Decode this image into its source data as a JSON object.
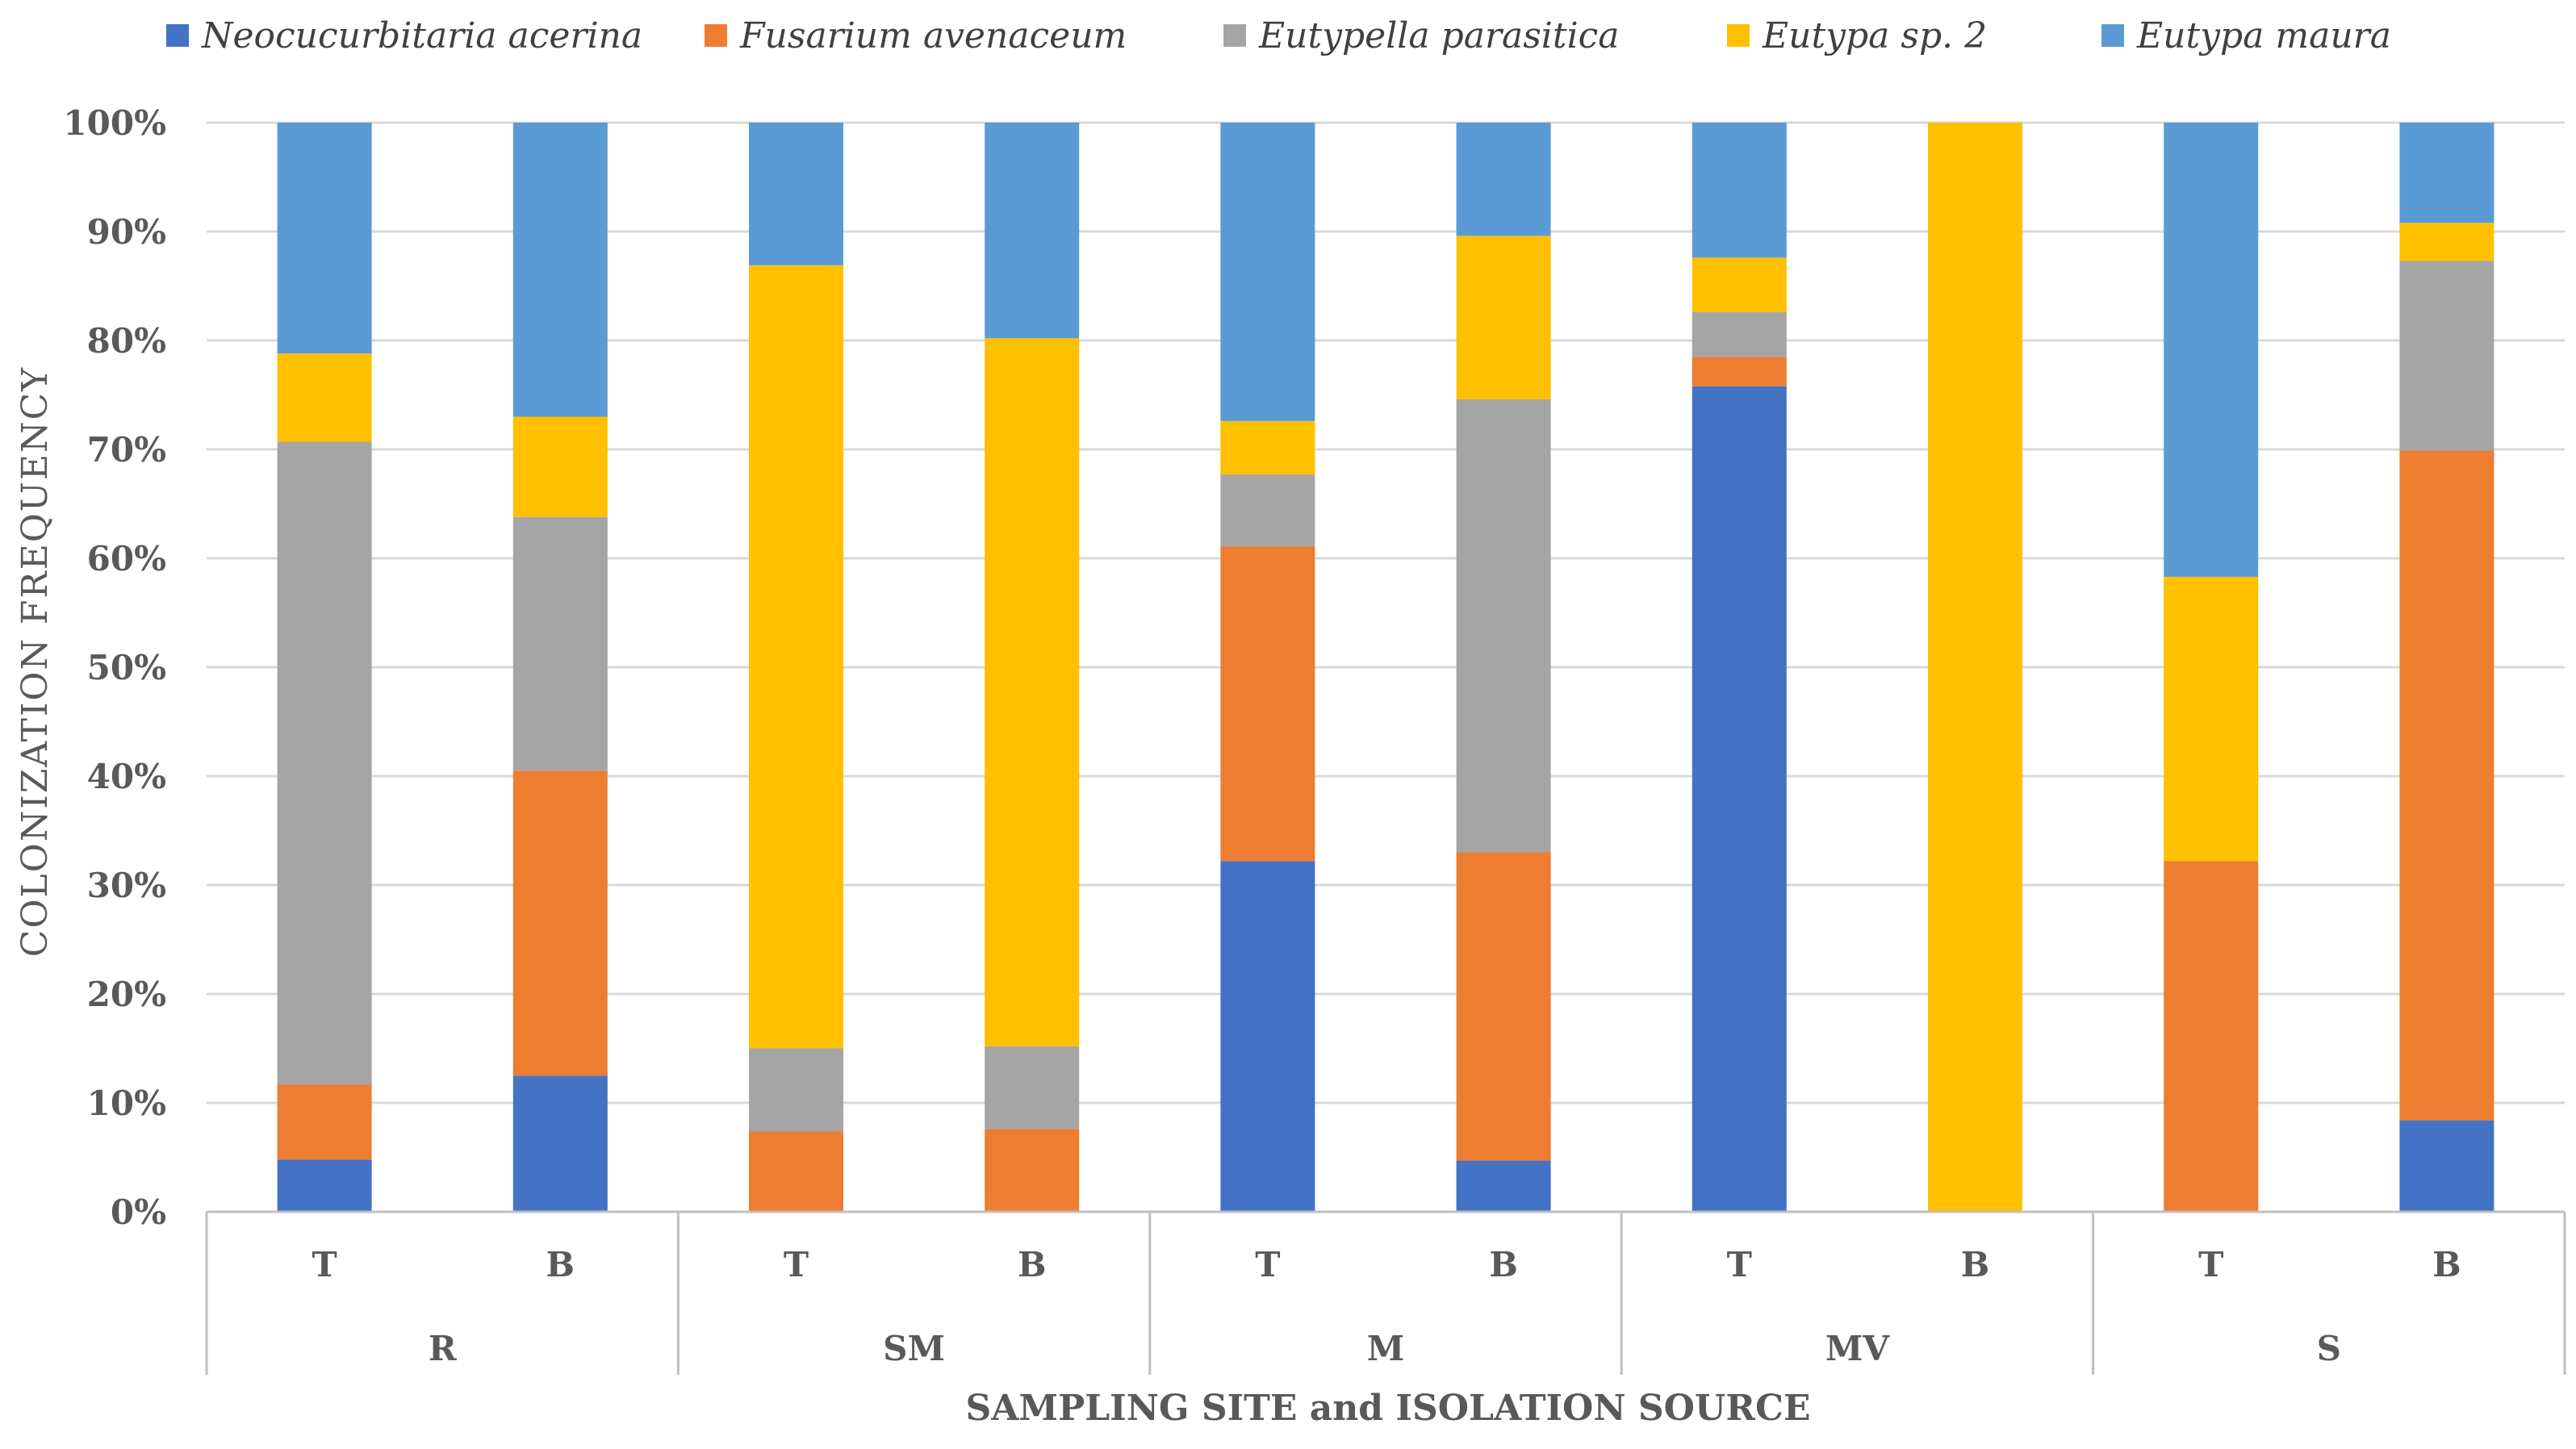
{
  "chart_data": {
    "type": "bar",
    "stacked": true,
    "title": "",
    "xlabel": "SAMPLING SITE and ISOLATION SOURCE",
    "ylabel": "COLONIZATION FREQUENCY",
    "ylim": [
      0,
      100
    ],
    "yticks": [
      "0%",
      "10%",
      "20%",
      "30%",
      "40%",
      "50%",
      "60%",
      "70%",
      "80%",
      "90%",
      "100%"
    ],
    "grid": true,
    "legend_position": "top",
    "groups": [
      {
        "label": "R",
        "categories": [
          "T",
          "B"
        ]
      },
      {
        "label": "SM",
        "categories": [
          "T",
          "B"
        ]
      },
      {
        "label": "M",
        "categories": [
          "T",
          "B"
        ]
      },
      {
        "label": "MV",
        "categories": [
          "T",
          "B"
        ]
      },
      {
        "label": "S",
        "categories": [
          "T",
          "B"
        ]
      }
    ],
    "series": [
      {
        "name": "Neocucurbitaria acerina",
        "color": "#4472C4",
        "values": [
          4.8,
          12.5,
          0,
          0,
          32.2,
          4.7,
          75.8,
          0,
          0,
          8.4
        ]
      },
      {
        "name": "Fusarium avenaceum",
        "color": "#ED7D31",
        "values": [
          6.9,
          28.0,
          7.4,
          7.6,
          28.9,
          28.3,
          2.7,
          0,
          32.2,
          61.5
        ]
      },
      {
        "name": "Eutypella parasitica",
        "color": "#A5A5A5",
        "values": [
          59.0,
          23.3,
          7.6,
          7.6,
          6.6,
          41.6,
          4.1,
          0,
          0,
          17.4
        ]
      },
      {
        "name": "Eutypa sp. 2",
        "color": "#FFC000",
        "values": [
          8.1,
          9.2,
          71.9,
          65.0,
          4.9,
          15.0,
          5.0,
          100,
          26.1,
          3.5
        ]
      },
      {
        "name": "Eutypa maura",
        "color": "#5B9BD5",
        "values": [
          21.2,
          27.0,
          13.1,
          19.8,
          27.4,
          10.4,
          12.4,
          0,
          41.7,
          9.2
        ]
      }
    ]
  }
}
